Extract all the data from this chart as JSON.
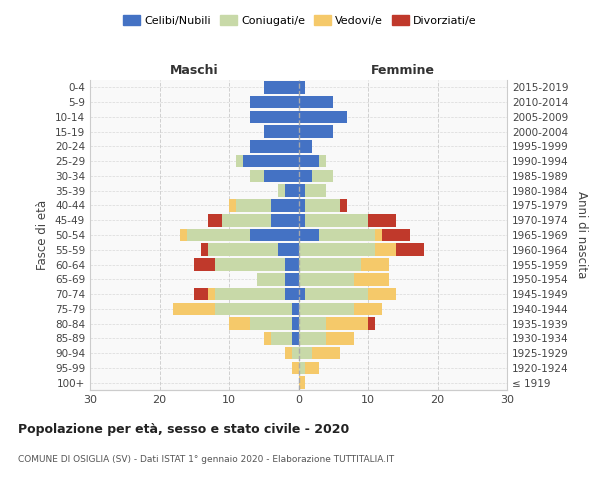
{
  "age_groups": [
    "100+",
    "95-99",
    "90-94",
    "85-89",
    "80-84",
    "75-79",
    "70-74",
    "65-69",
    "60-64",
    "55-59",
    "50-54",
    "45-49",
    "40-44",
    "35-39",
    "30-34",
    "25-29",
    "20-24",
    "15-19",
    "10-14",
    "5-9",
    "0-4"
  ],
  "birth_years": [
    "≤ 1919",
    "1920-1924",
    "1925-1929",
    "1930-1934",
    "1935-1939",
    "1940-1944",
    "1945-1949",
    "1950-1954",
    "1955-1959",
    "1960-1964",
    "1965-1969",
    "1970-1974",
    "1975-1979",
    "1980-1984",
    "1985-1989",
    "1990-1994",
    "1995-1999",
    "2000-2004",
    "2005-2009",
    "2010-2014",
    "2015-2019"
  ],
  "male": {
    "celibi": [
      0,
      0,
      0,
      1,
      1,
      1,
      2,
      2,
      2,
      3,
      7,
      4,
      4,
      2,
      5,
      8,
      7,
      5,
      7,
      7,
      5
    ],
    "coniugati": [
      0,
      0,
      1,
      3,
      6,
      11,
      10,
      4,
      10,
      10,
      9,
      7,
      5,
      1,
      2,
      1,
      0,
      0,
      0,
      0,
      0
    ],
    "vedovi": [
      0,
      1,
      1,
      1,
      3,
      6,
      1,
      0,
      0,
      0,
      1,
      0,
      1,
      0,
      0,
      0,
      0,
      0,
      0,
      0,
      0
    ],
    "divorziati": [
      0,
      0,
      0,
      0,
      0,
      0,
      2,
      0,
      3,
      1,
      0,
      2,
      0,
      0,
      0,
      0,
      0,
      0,
      0,
      0,
      0
    ]
  },
  "female": {
    "nubili": [
      0,
      0,
      0,
      0,
      0,
      0,
      1,
      0,
      0,
      0,
      3,
      1,
      1,
      1,
      2,
      3,
      2,
      5,
      7,
      5,
      1
    ],
    "coniugate": [
      0,
      1,
      2,
      4,
      4,
      8,
      9,
      8,
      9,
      11,
      8,
      9,
      5,
      3,
      3,
      1,
      0,
      0,
      0,
      0,
      0
    ],
    "vedove": [
      1,
      2,
      4,
      4,
      6,
      4,
      4,
      5,
      4,
      3,
      1,
      0,
      0,
      0,
      0,
      0,
      0,
      0,
      0,
      0,
      0
    ],
    "divorziate": [
      0,
      0,
      0,
      0,
      1,
      0,
      0,
      0,
      0,
      4,
      4,
      4,
      1,
      0,
      0,
      0,
      0,
      0,
      0,
      0,
      0
    ]
  },
  "colors": {
    "celibi_nubili": "#4472c4",
    "coniugati": "#c8d9a8",
    "vedovi": "#f5c96a",
    "divorziati": "#c0392b"
  },
  "xlim": 30,
  "title": "Popolazione per età, sesso e stato civile - 2020",
  "subtitle": "COMUNE DI OSIGLIA (SV) - Dati ISTAT 1° gennaio 2020 - Elaborazione TUTTITALIA.IT",
  "ylabel_left": "Fasce di età",
  "ylabel_right": "Anni di nascita",
  "xlabel_maschi": "Maschi",
  "xlabel_femmine": "Femmine"
}
